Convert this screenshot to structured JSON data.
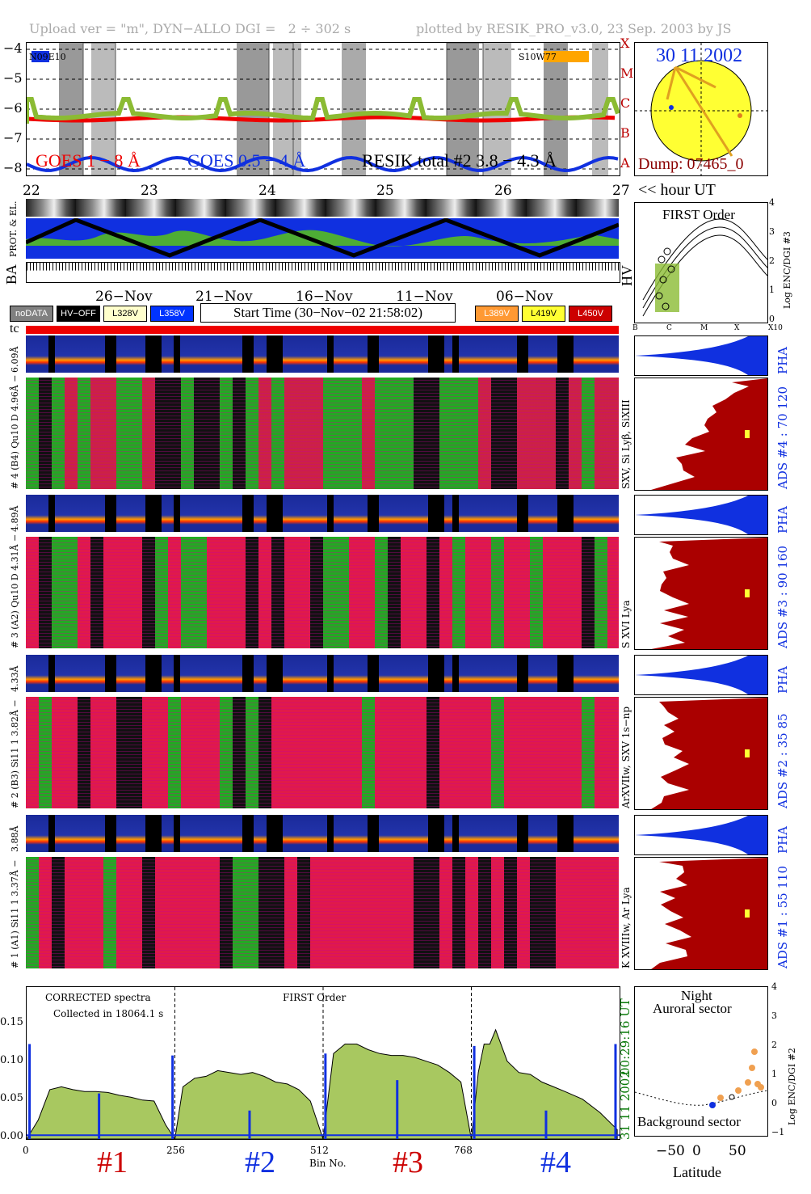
{
  "header": {
    "left": "Upload ver = \"m\", DYN−ALLO DGI =   2 ÷ 302 s",
    "right": "plotted by RESIK_PRO_v3.0, 23 Sep. 2003 by JS"
  },
  "goes_panel": {
    "legend_goes_long": "GOES 1 − 8 Å",
    "legend_goes_short": "GOES 0.5 − 4 Å",
    "legend_resik": "RESIK total #2  3.8 − 4.3 Å",
    "tag_left": "N09E10",
    "tag_right": "S10W77",
    "yticks": [
      "−4",
      "−5",
      "−6",
      "−7",
      "−8"
    ],
    "class_letters": [
      "X",
      "M",
      "C",
      "B",
      "A"
    ],
    "hour_ticks": [
      "22",
      "23",
      "24",
      "25",
      "26",
      "27"
    ],
    "hour_label": "<< hour UT"
  },
  "sun_panel": {
    "date": "30 11 2002",
    "dump": "Dump: 07465_0"
  },
  "orbit_panel": {
    "left_label": "PROT. & EL.",
    "ba": "BA",
    "hv": "HV"
  },
  "hv_panel": {
    "dates": [
      "26−Nov",
      "21−Nov",
      "16−Nov",
      "11−Nov",
      "06−Nov"
    ],
    "buttons": [
      {
        "label": "noDATA",
        "bg": "#808080",
        "fg": "#ffffff"
      },
      {
        "label": "HV−OFF",
        "bg": "#000000",
        "fg": "#ffffff"
      },
      {
        "label": "L328V",
        "bg": "#ffffcc",
        "fg": "#000000"
      },
      {
        "label": "L358V",
        "bg": "#0033ff",
        "fg": "#ffffff"
      },
      {
        "label": "L389V",
        "bg": "#ff9933",
        "fg": "#ffffff"
      },
      {
        "label": "L419V",
        "bg": "#ffff33",
        "fg": "#000000"
      },
      {
        "label": "L450V",
        "bg": "#cc0000",
        "fg": "#ffffff"
      }
    ],
    "start_time": "Start Time (30−Nov−02 21:58:02)",
    "tc": "tc"
  },
  "first_order_panel": {
    "title": "FIRST Order",
    "ylabel": "Log ENC/DGI #3",
    "yticks": [
      "4",
      "3",
      "2",
      "1",
      "0"
    ],
    "xticks": [
      "B",
      "C",
      "M",
      "X",
      "X10"
    ]
  },
  "channels": [
    {
      "pha_label": "6.09Å",
      "spec_label": "# 4 (B4) Qu10 D 4.96Å −",
      "lines": "SXV, Si Lyβ, SiXIII",
      "ads": "ADS #4 :    70 120",
      "pha": "PHA"
    },
    {
      "pha_label": "4.89Å",
      "spec_label": "# 3 (A2) Qu10 D 4.31Å −",
      "lines": "S XVI Lya",
      "ads": "ADS #3 :    90 160",
      "pha": "PHA"
    },
    {
      "pha_label": "4.33Å",
      "spec_label": "# 2 (B3) Si11 1 3.82Å −",
      "lines": "ArXVIIw, SXV 1s−np",
      "ads": "ADS #2 :    35  85",
      "pha": "PHA"
    },
    {
      "pha_label": "3.88Å",
      "spec_label": "# 1 (A1) Si11 1 3.37Å −",
      "lines": "K XVIIIw, Ar Lya",
      "ads": "ADS #1 :    55 110",
      "pha": "PHA"
    }
  ],
  "bottom_panel": {
    "text1": "CORRECTED spectra",
    "text2": "Collected in 18064.1 s",
    "text3": "FIRST Order",
    "side_time": "00:29:16 UT",
    "side_date": "31 11 2002",
    "xlabel": "Bin No.",
    "channel_labels": [
      "#1",
      "#2",
      "#3",
      "#4"
    ]
  },
  "latitude_panel": {
    "title1": "Night",
    "title2": "Auroral sector",
    "bottom": "Background sector",
    "xlabel": "Latitude",
    "ylabel": "Log ENC/DGI #2",
    "xticks": [
      "−50",
      "0",
      "50"
    ],
    "yticks": [
      "4",
      "3",
      "2",
      "1",
      "0",
      "−1"
    ]
  },
  "chart_data": {
    "type": "area",
    "title": "",
    "xlabel": "Bin No.",
    "ylabel": "",
    "xlim": [
      0,
      1024
    ],
    "ylim": [
      0,
      0.16
    ],
    "yticks": [
      0.0,
      0.05,
      0.1,
      0.15
    ],
    "xticks": [
      0,
      256,
      512,
      768
    ],
    "segments": [
      {
        "name": "#1",
        "x": [
          0,
          20,
          40,
          60,
          80,
          100,
          120,
          140,
          160,
          180,
          200,
          220,
          240,
          256
        ],
        "values": [
          0.0,
          0.02,
          0.052,
          0.055,
          0.052,
          0.05,
          0.05,
          0.049,
          0.046,
          0.044,
          0.041,
          0.04,
          0.015,
          0.0
        ]
      },
      {
        "name": "#2",
        "x": [
          256,
          270,
          290,
          310,
          330,
          350,
          370,
          390,
          410,
          430,
          450,
          470,
          490,
          512
        ],
        "values": [
          0.0,
          0.055,
          0.064,
          0.066,
          0.072,
          0.07,
          0.068,
          0.07,
          0.066,
          0.06,
          0.058,
          0.052,
          0.04,
          0.0
        ]
      },
      {
        "name": "#3",
        "x": [
          512,
          530,
          550,
          570,
          590,
          610,
          630,
          650,
          670,
          690,
          710,
          730,
          750,
          768
        ],
        "values": [
          0.0,
          0.09,
          0.1,
          0.1,
          0.094,
          0.09,
          0.088,
          0.088,
          0.086,
          0.082,
          0.078,
          0.07,
          0.06,
          0.0
        ]
      },
      {
        "name": "#4",
        "x": [
          768,
          780,
          790,
          800,
          810,
          830,
          850,
          870,
          890,
          910,
          930,
          960,
          990,
          1020
        ],
        "values": [
          0.0,
          0.07,
          0.1,
          0.1,
          0.115,
          0.082,
          0.07,
          0.068,
          0.06,
          0.055,
          0.05,
          0.042,
          0.028,
          0.01
        ]
      }
    ],
    "blue_spikes": [
      {
        "x": 5,
        "y": 0.1
      },
      {
        "x": 125,
        "y": 0.048
      },
      {
        "x": 252,
        "y": 0.088
      },
      {
        "x": 385,
        "y": 0.03
      },
      {
        "x": 516,
        "y": 0.09
      },
      {
        "x": 640,
        "y": 0.062
      },
      {
        "x": 773,
        "y": 0.098
      },
      {
        "x": 897,
        "y": 0.03
      },
      {
        "x": 1017,
        "y": 0.1
      }
    ]
  }
}
